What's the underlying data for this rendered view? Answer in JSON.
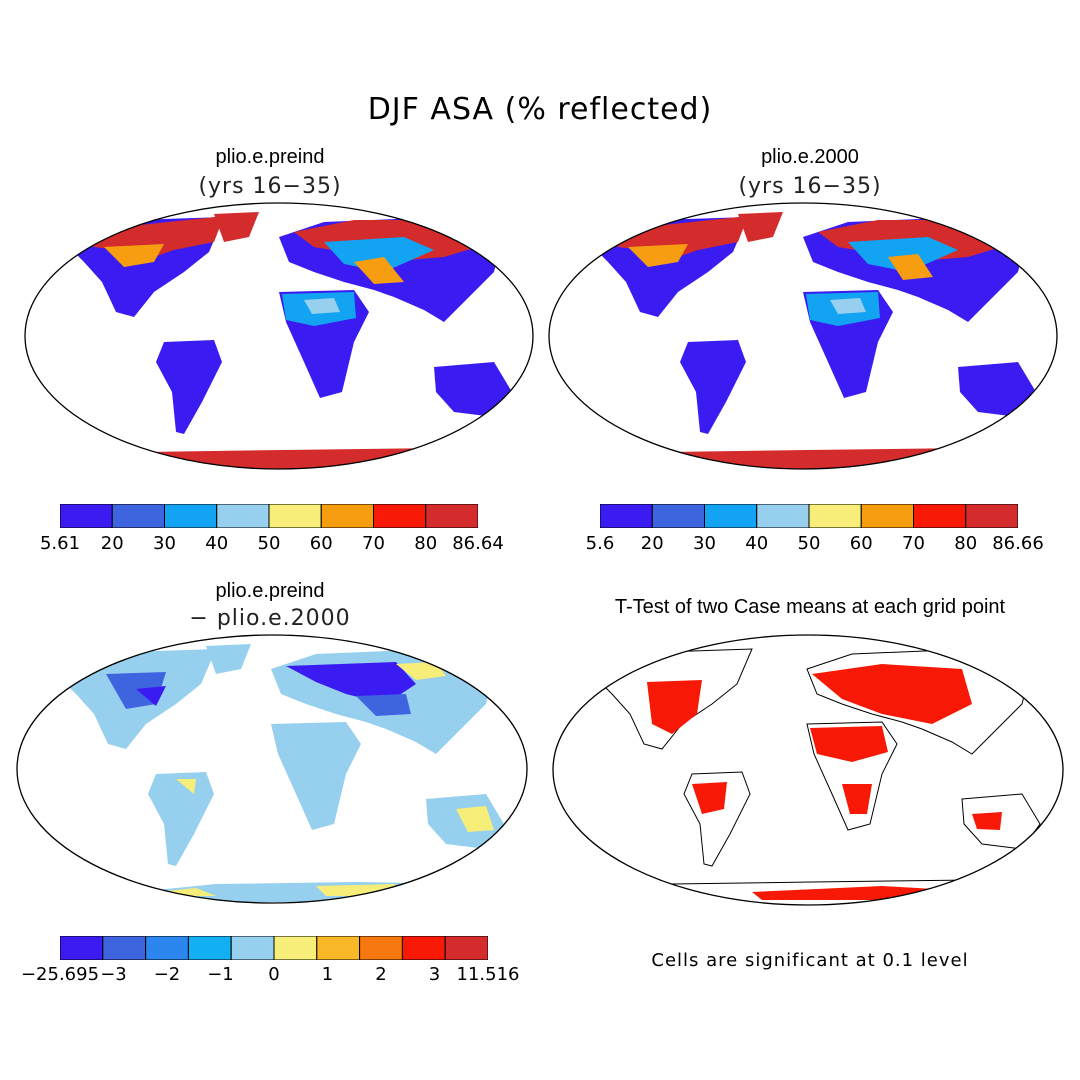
{
  "figure": {
    "title": "DJF ASA (% reflected)",
    "panels": [
      {
        "id": "preind",
        "title": "plio.e.preind",
        "subtitle": "(yrs 16−35)",
        "colorbar": {
          "labels": [
            "5.61",
            "20",
            "30",
            "40",
            "50",
            "60",
            "70",
            "80",
            "86.64"
          ],
          "colors": [
            "#3a1cf2",
            "#3f64e0",
            "#12a4f2",
            "#96d0ee",
            "#f6ee78",
            "#f79e10",
            "#f81806",
            "#d42c2c"
          ]
        }
      },
      {
        "id": "y2000",
        "title": "plio.e.2000",
        "subtitle": "(yrs 16−35)",
        "colorbar": {
          "labels": [
            "5.6",
            "20",
            "30",
            "40",
            "50",
            "60",
            "70",
            "80",
            "86.66"
          ],
          "colors": [
            "#3a1cf2",
            "#3f64e0",
            "#12a4f2",
            "#96d0ee",
            "#f6ee78",
            "#f79e10",
            "#f81806",
            "#d42c2c"
          ]
        }
      },
      {
        "id": "diff",
        "title": "plio.e.preind",
        "subtitle": "− plio.e.2000",
        "colorbar": {
          "labels": [
            "−25.695",
            "−3",
            "−2",
            "−1",
            "0",
            "1",
            "2",
            "3",
            "11.516"
          ],
          "colors": [
            "#3a1cf2",
            "#3f64e0",
            "#2b86ee",
            "#12b0f2",
            "#96d0ee",
            "#f6ee78",
            "#f8b828",
            "#f77810",
            "#f81806",
            "#d42c2c"
          ]
        }
      },
      {
        "id": "ttest",
        "title": "T-Test of two Case means at each grid point",
        "note": "Cells are significant at 0.1 level",
        "color": "#f81806"
      }
    ]
  }
}
